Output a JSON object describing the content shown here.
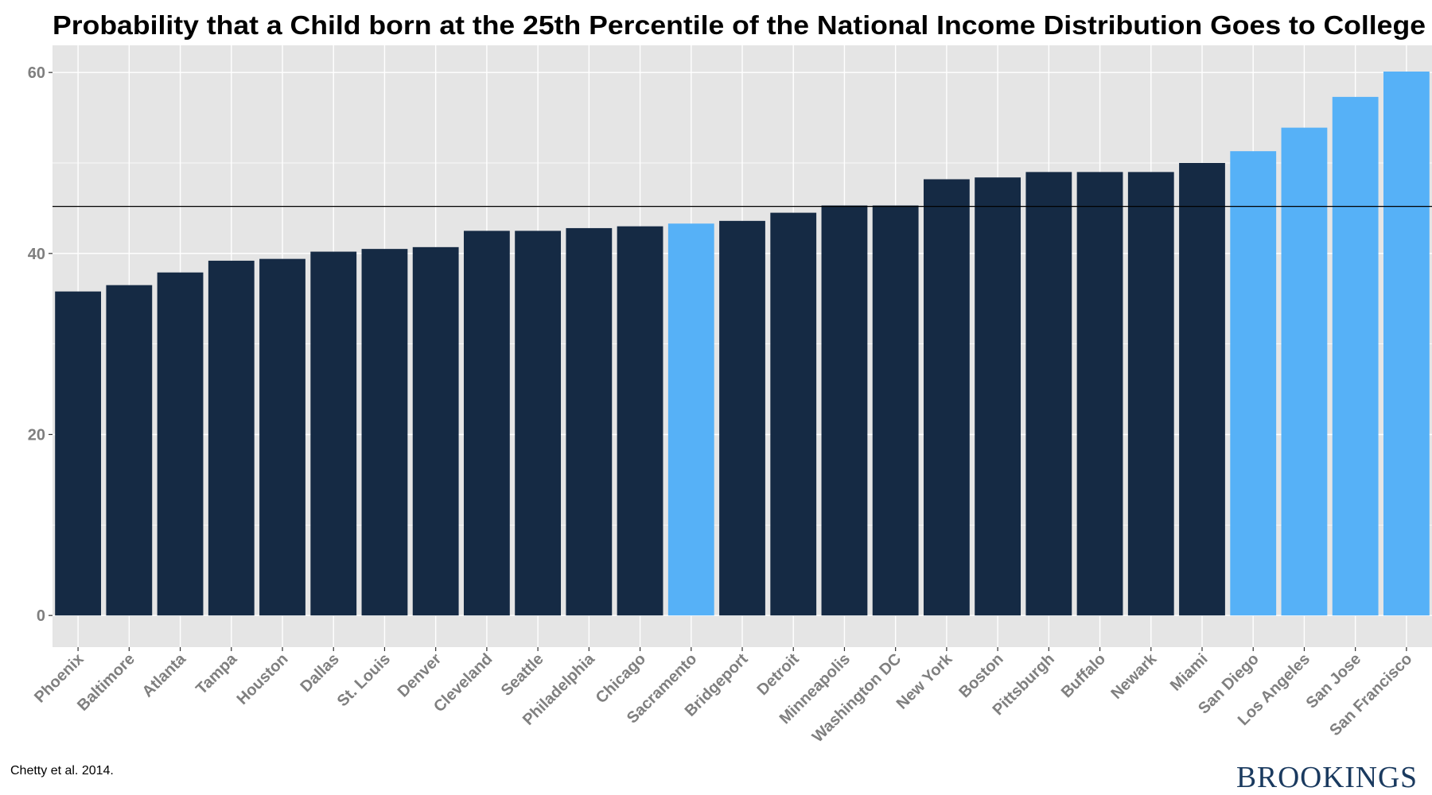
{
  "chart_data": {
    "type": "bar",
    "title": "Probability that a Child born at the 25th Percentile of the National Income Distribution Goes to College",
    "xlabel": "",
    "ylabel": "",
    "ylim": [
      -3.5,
      63
    ],
    "yticks": [
      0,
      20,
      40,
      60
    ],
    "categories": [
      "Phoenix",
      "Baltimore",
      "Atlanta",
      "Tampa",
      "Houston",
      "Dallas",
      "St. Louis",
      "Denver",
      "Cleveland",
      "Seattle",
      "Philadelphia",
      "Chicago",
      "Sacramento",
      "Bridgeport",
      "Detroit",
      "Minneapolis",
      "Washington DC",
      "New York",
      "Boston",
      "Pittsburgh",
      "Buffalo",
      "Newark",
      "Miami",
      "San Diego",
      "Los Angeles",
      "San Jose",
      "San Francisco"
    ],
    "values": [
      35.8,
      36.5,
      37.9,
      39.2,
      39.4,
      40.2,
      40.5,
      40.7,
      42.5,
      42.5,
      42.8,
      43.0,
      43.3,
      43.6,
      44.5,
      45.3,
      45.3,
      48.2,
      48.4,
      49.0,
      49.0,
      49.0,
      50.0,
      51.3,
      53.9,
      57.3,
      60.1
    ],
    "highlight": [
      false,
      false,
      false,
      false,
      false,
      false,
      false,
      false,
      false,
      false,
      false,
      false,
      true,
      false,
      false,
      false,
      false,
      false,
      false,
      false,
      false,
      false,
      false,
      true,
      true,
      true,
      true
    ],
    "reference_line": 45.2,
    "colors": {
      "default": "#152a44",
      "highlight": "#56b1f7",
      "panel": "#e5e5e5",
      "grid": "#ffffff",
      "reference": "#000000"
    },
    "grid": true,
    "legend": "none"
  },
  "footer": {
    "source": "Chetty et al. 2014.",
    "brand": "BROOKINGS"
  }
}
